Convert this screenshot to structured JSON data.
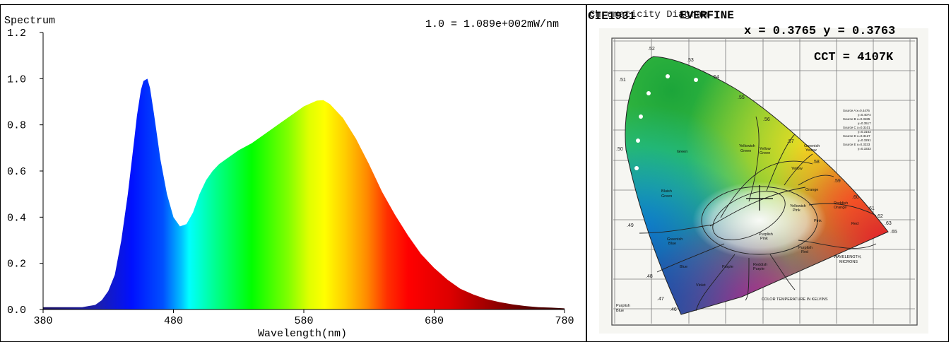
{
  "chart_data": [
    {
      "type": "area",
      "title": "Spectrum",
      "note": "1.0 = 1.089e+002mW/nm",
      "xlabel": "Wavelength(nm)",
      "ylabel": "",
      "xlim": [
        380,
        780
      ],
      "ylim": [
        0,
        1.2
      ],
      "xticks": [
        "380",
        "480",
        "580",
        "680",
        "780"
      ],
      "yticks": [
        "0.0",
        "0.2",
        "0.4",
        "0.6",
        "0.8",
        "1.0",
        "1.2"
      ],
      "series": [
        {
          "x": [
            380,
            390,
            400,
            410,
            420,
            425,
            430,
            435,
            440,
            445,
            450,
            452,
            455,
            457,
            460,
            462,
            465,
            470,
            475,
            480,
            485,
            490,
            495,
            500,
            505,
            510,
            515,
            520,
            530,
            540,
            550,
            560,
            570,
            580,
            590,
            595,
            600,
            610,
            620,
            630,
            640,
            650,
            660,
            670,
            680,
            690,
            700,
            710,
            720,
            730,
            740,
            750,
            760,
            770,
            780
          ],
          "values": [
            0.01,
            0.01,
            0.01,
            0.01,
            0.02,
            0.04,
            0.08,
            0.15,
            0.3,
            0.5,
            0.74,
            0.84,
            0.95,
            0.99,
            1.0,
            0.96,
            0.85,
            0.65,
            0.5,
            0.4,
            0.36,
            0.37,
            0.42,
            0.5,
            0.56,
            0.6,
            0.63,
            0.65,
            0.69,
            0.72,
            0.76,
            0.8,
            0.84,
            0.88,
            0.905,
            0.907,
            0.89,
            0.83,
            0.74,
            0.63,
            0.51,
            0.41,
            0.32,
            0.24,
            0.18,
            0.13,
            0.09,
            0.065,
            0.045,
            0.032,
            0.022,
            0.015,
            0.01,
            0.008,
            0.005
          ]
        }
      ]
    },
    {
      "type": "scatter",
      "title": "CIE1931",
      "xlabel": "",
      "ylabel": "",
      "point": {
        "x": 0.3765,
        "y": 0.3763
      }
    }
  ],
  "cie": {
    "overlay_title": "Chromaticity Diagram",
    "brand": "EVERFINE",
    "standard": "CIE1931",
    "coord_text": "x = 0.3765  y = 0.3763",
    "cct_text": "CCT = 4107K"
  },
  "diagram_labels": {
    "regions": [
      "Green",
      "Yellowish Green",
      "Yellow Green",
      "Greenish Yellow",
      "Yellow",
      "Bluish Green",
      "Greenish Blue",
      "Blue",
      "Violet",
      "Purple",
      "Reddish Purple",
      "Purplish Pink",
      "Purplish Red",
      "Red",
      "Reddish Orange",
      "Orange",
      "Pink",
      "Yellowish Pink",
      "Blue",
      "Purplish Blue"
    ],
    "wavelengths": [
      ".52",
      ".53",
      ".54",
      ".55",
      ".56",
      ".57",
      ".58",
      ".59",
      ".60",
      ".61",
      ".62",
      ".63",
      ".65",
      ".51",
      ".50",
      ".49",
      ".48",
      ".47",
      ".46"
    ],
    "footer": "COLOR TEMPERATURE IN KELVINS",
    "wavelength_note": "WAVELENGTH, MICRONS",
    "sources": "Source A x=0.4476 y=0.4074 Source B x=0.3485 y=0.3517 Source C x=0.3101 y=0.3163 Source D x=0.3127 y=0.3291 Source E x=0.3333 y=0.3333"
  }
}
